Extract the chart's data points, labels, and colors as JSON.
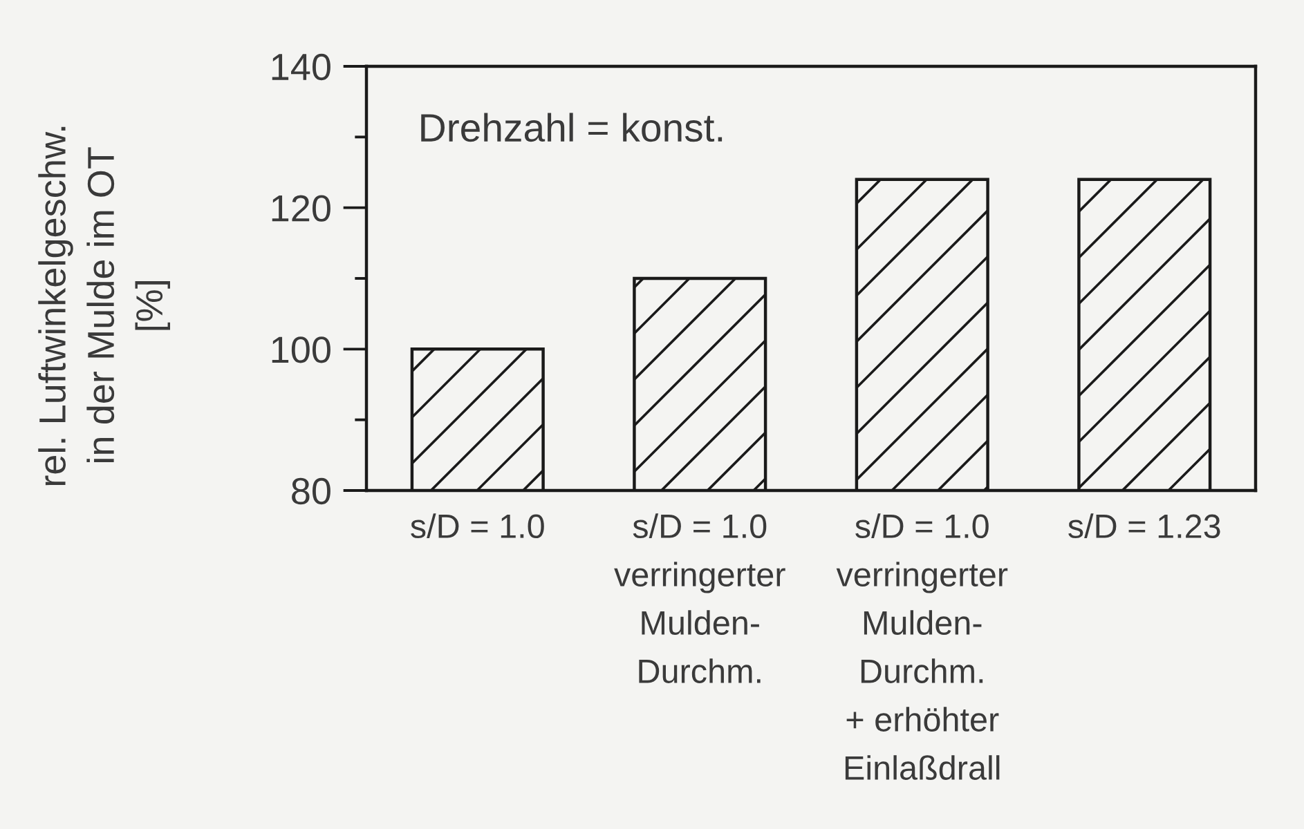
{
  "chart_data": {
    "type": "bar",
    "ylabel": "rel. Luftwinkelgeschw.\nin der Mulde im OT\n[%]",
    "annotations": [
      "Drehzahl = konst."
    ],
    "categories": [
      "s/D = 1.0",
      "s/D = 1.0\nverringerter\nMulden-\nDurchm.",
      "s/D = 1.0\nverringerter\nMulden-\nDurchm.\n+ erhöhter\nEinlaßdrall",
      "s/D = 1.23"
    ],
    "values": [
      100,
      110,
      124,
      124
    ],
    "color": "#1a1a1a",
    "ylim": [
      80,
      140
    ],
    "yticks": [
      80,
      {
        "value": 90,
        "label": null
      },
      100,
      {
        "value": 110,
        "label": null
      },
      120,
      {
        "value": 130,
        "label": null
      },
      140
    ]
  }
}
